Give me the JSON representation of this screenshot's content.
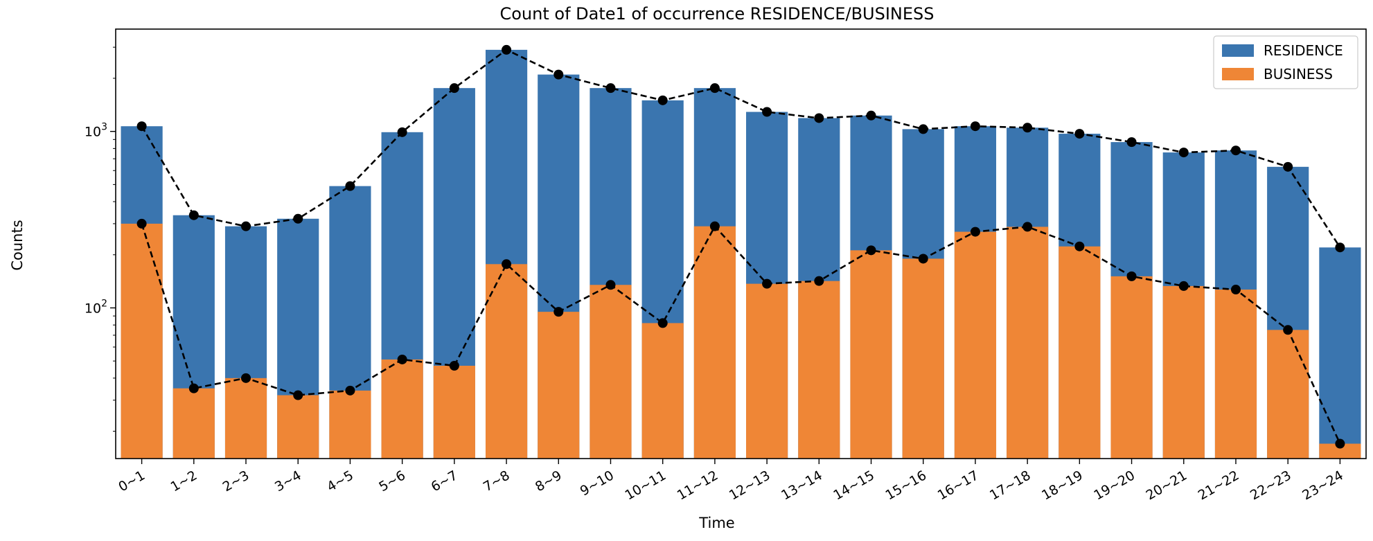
{
  "chart_data": {
    "type": "bar",
    "stacked": true,
    "title": "Count of Date1 of occurrence RESIDENCE/BUSINESS",
    "xlabel": "Time",
    "ylabel": "Counts",
    "yscale": "log",
    "ylim": [
      14,
      3800
    ],
    "ytick_labels": [
      {
        "value": 100,
        "exp": "2"
      },
      {
        "value": 1000,
        "exp": "3"
      }
    ],
    "legend_position": "top-right",
    "categories": [
      "0~1",
      "1~2",
      "2~3",
      "3~4",
      "4~5",
      "5~6",
      "6~7",
      "7~8",
      "8~9",
      "9~10",
      "10~11",
      "11~12",
      "12~13",
      "13~14",
      "14~15",
      "15~16",
      "16~17",
      "17~18",
      "18~19",
      "19~20",
      "20~21",
      "21~22",
      "22~23",
      "23~24"
    ],
    "series": [
      {
        "name": "RESIDENCE",
        "color": "#3a75af",
        "values": [
          1070,
          335,
          290,
          320,
          490,
          990,
          1760,
          2900,
          2100,
          1760,
          1500,
          1760,
          1290,
          1190,
          1230,
          1030,
          1070,
          1050,
          970,
          870,
          760,
          780,
          630,
          220
        ]
      },
      {
        "name": "BUSINESS",
        "color": "#ef8636",
        "values": [
          300,
          35,
          40,
          32,
          34,
          51,
          47,
          177,
          95,
          135,
          82,
          290,
          137,
          142,
          212,
          190,
          270,
          288,
          223,
          151,
          133,
          127,
          75,
          17
        ]
      }
    ]
  }
}
